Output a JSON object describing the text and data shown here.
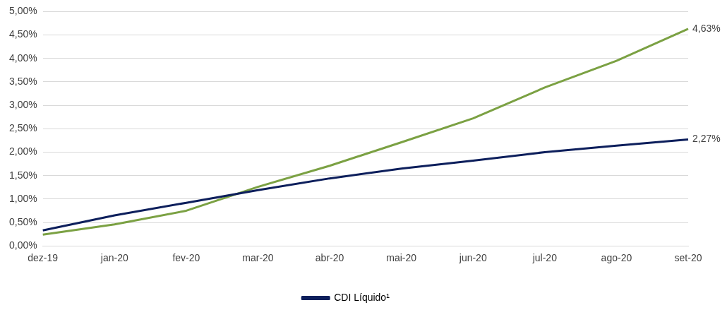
{
  "chart_data": {
    "type": "line",
    "categories": [
      "dez-19",
      "jan-20",
      "fev-20",
      "mar-20",
      "abr-20",
      "mai-20",
      "jun-20",
      "jul-20",
      "ago-20",
      "set-20"
    ],
    "series": [
      {
        "name": "CDI Líquido¹",
        "color": "#0d1f5c",
        "values": [
          0.33,
          0.65,
          0.92,
          1.19,
          1.44,
          1.65,
          1.82,
          2.0,
          2.14,
          2.27
        ],
        "value_labels": [
          null,
          null,
          null,
          null,
          null,
          null,
          null,
          null,
          null,
          "2,27%"
        ]
      },
      {
        "color": "#7ba143",
        "values": [
          0.24,
          0.46,
          0.75,
          1.26,
          1.71,
          2.21,
          2.72,
          3.38,
          3.95,
          4.63
        ],
        "value_labels": [
          null,
          null,
          null,
          null,
          null,
          null,
          null,
          null,
          null,
          "4,63%"
        ]
      }
    ],
    "ylim": [
      0,
      5
    ],
    "yticks": [
      {
        "value": 0,
        "label": "0,00%"
      },
      {
        "value": 0.5,
        "label": "0,50%"
      },
      {
        "value": 1,
        "label": "1,00%"
      },
      {
        "value": 1.5,
        "label": "1,50%"
      },
      {
        "value": 2,
        "label": "2,00%"
      },
      {
        "value": 2.5,
        "label": "2,50%"
      },
      {
        "value": 3,
        "label": "3,00%"
      },
      {
        "value": 3.5,
        "label": "3,50%"
      },
      {
        "value": 4,
        "label": "4,00%"
      },
      {
        "value": 4.5,
        "label": "4,50%"
      },
      {
        "value": 5,
        "label": "5,00%"
      }
    ],
    "grid": "y",
    "legend": "bottom",
    "marker": "none",
    "line_style": "solid"
  }
}
